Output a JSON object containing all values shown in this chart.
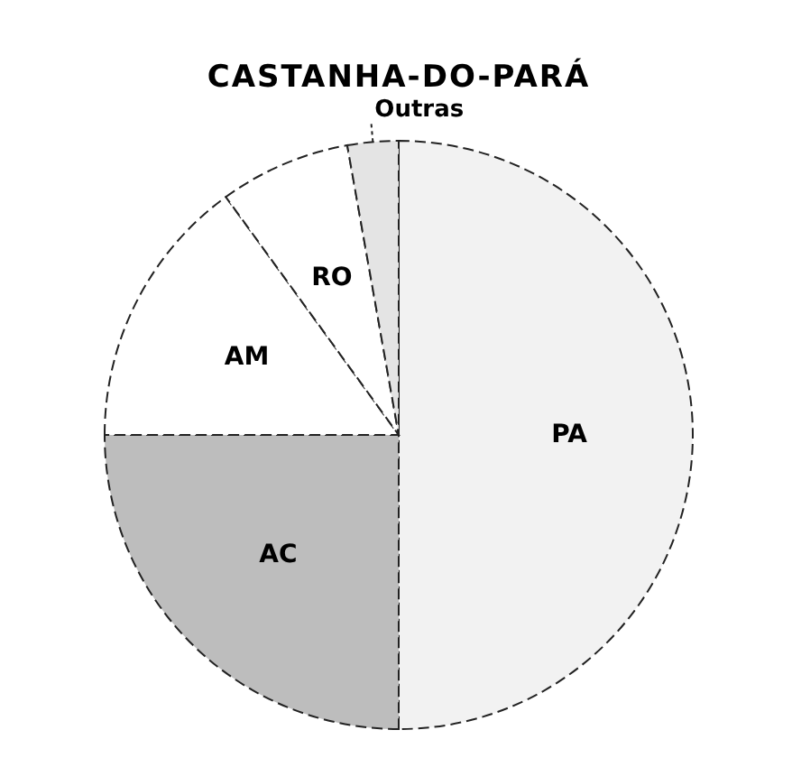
{
  "chart_data": {
    "type": "pie",
    "title": "CASTANHA-DO-PARÁ",
    "categories": [
      "PA",
      "AC",
      "AM",
      "RO",
      "Outras"
    ],
    "values": [
      50,
      25,
      15,
      7.2,
      2.8
    ],
    "colors": [
      "#f2f2f2",
      "#bdbdbd",
      "#ffffff",
      "#ffffff",
      "#e4e4e4"
    ]
  }
}
